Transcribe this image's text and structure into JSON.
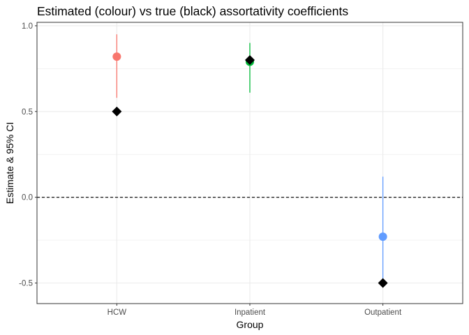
{
  "chart_data": {
    "type": "scatter",
    "title": "Estimated (colour) vs true (black) assortativity coefficients",
    "xlabel": "Group",
    "ylabel": "Estimate & 95% CI",
    "categories": [
      "HCW",
      "Inpatient",
      "Outpatient"
    ],
    "ylim": [
      -0.62,
      1.02
    ],
    "yticks": [
      -0.5,
      0.0,
      0.5,
      1.0
    ],
    "ytick_labels": [
      "-0.5",
      "0.0",
      "0.5",
      "1.0"
    ],
    "grid": true,
    "reference_line": {
      "y": 0,
      "style": "dashed",
      "color": "#000000"
    },
    "series": [
      {
        "name": "Estimate",
        "marker": "circle",
        "values": [
          0.82,
          0.79,
          -0.23
        ],
        "ci_low": [
          0.58,
          0.61,
          -0.51
        ],
        "ci_high": [
          0.95,
          0.9,
          0.12
        ],
        "colors": [
          "#F8766D",
          "#00BA38",
          "#619CFF"
        ]
      },
      {
        "name": "True",
        "marker": "diamond",
        "color": "#000000",
        "values": [
          0.5,
          0.8,
          -0.5
        ]
      }
    ]
  }
}
